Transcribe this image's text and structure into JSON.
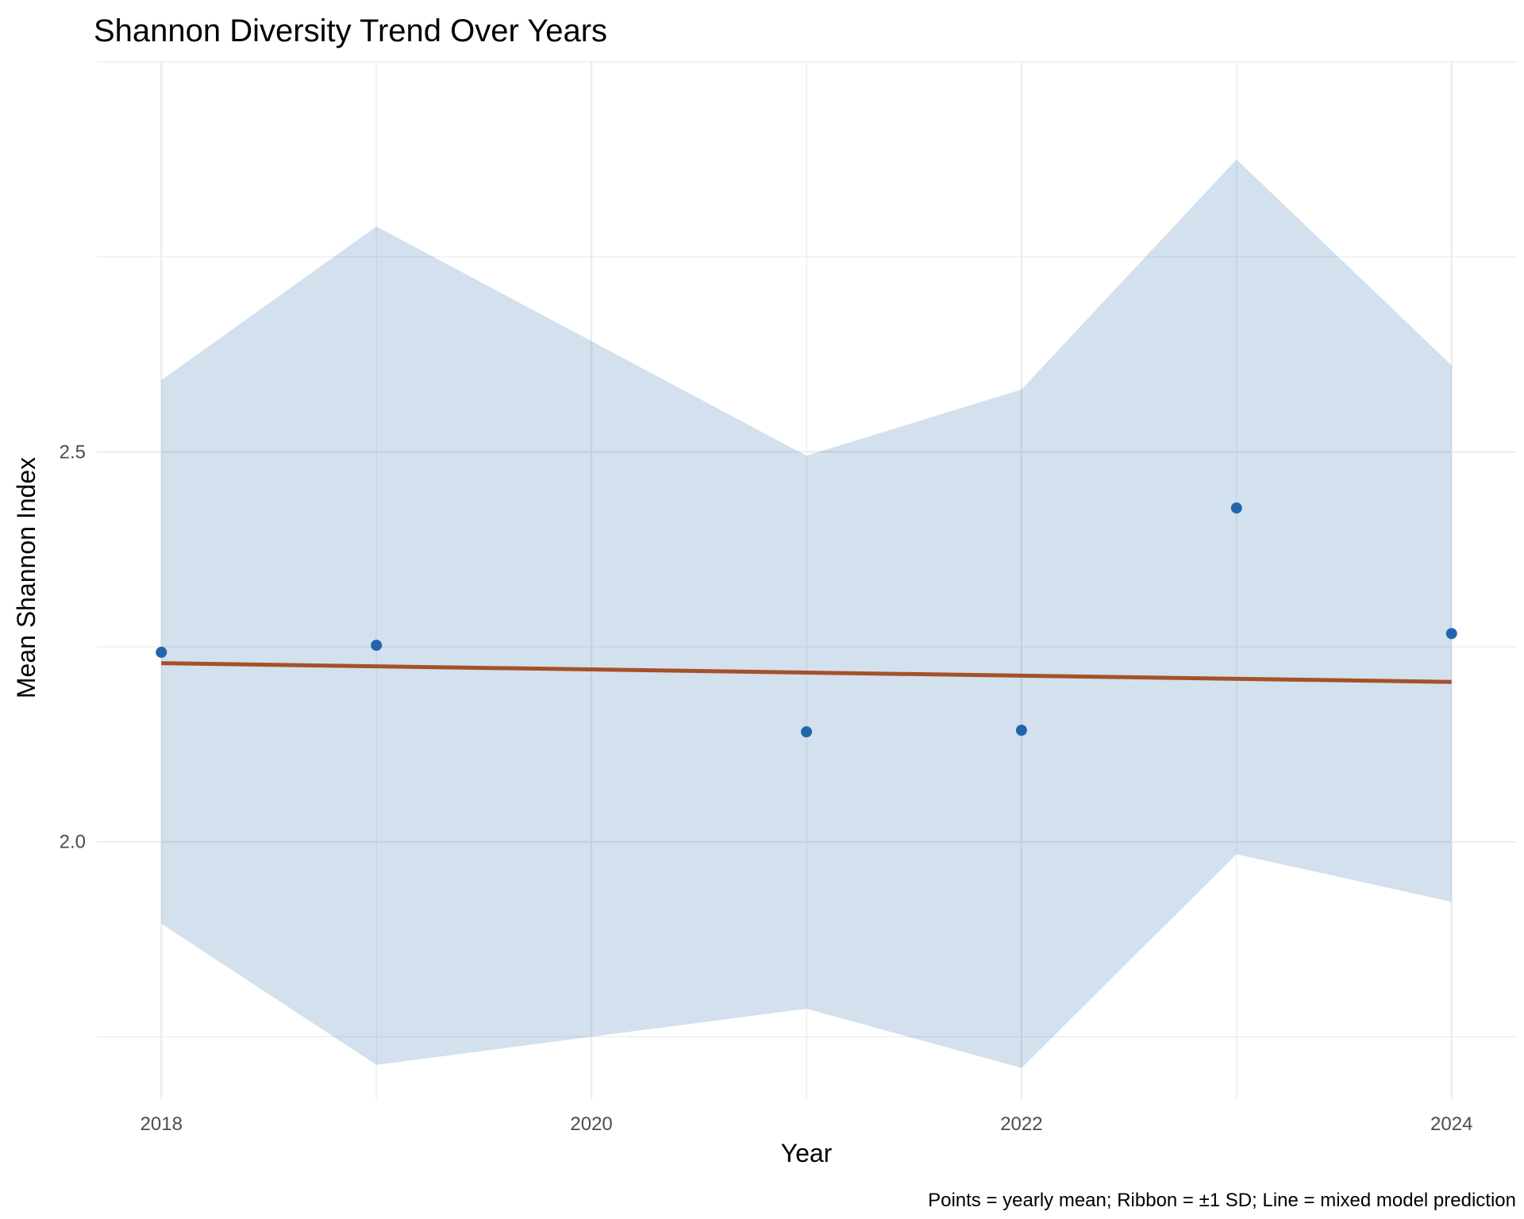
{
  "chart_data": {
    "type": "line",
    "title": "Shannon Diversity Trend Over Years",
    "xlabel": "Year",
    "ylabel": "Mean Shannon Index",
    "caption": "Points = yearly mean; Ribbon = ±1 SD; Line = mixed model prediction",
    "x_ticks": [
      "2018",
      "2020",
      "2022",
      "2024"
    ],
    "y_ticks": [
      "2.0",
      "2.5"
    ],
    "xlim": [
      2017.7,
      2024.3
    ],
    "ylim": [
      1.67,
      3.0
    ],
    "grid": true,
    "x": [
      2018,
      2019,
      2021,
      2022,
      2023,
      2024
    ],
    "series": [
      {
        "name": "Points = yearly mean",
        "type": "scatter",
        "values": [
          2.243,
          2.252,
          2.141,
          2.143,
          2.428,
          2.267
        ]
      },
      {
        "name": "Ribbon = ±1 SD",
        "type": "ribbon",
        "upper": [
          2.592,
          2.789,
          2.495,
          2.58,
          2.875,
          2.611
        ],
        "lower": [
          1.895,
          1.714,
          1.786,
          1.71,
          1.984,
          1.923
        ]
      },
      {
        "name": "Line = mixed model prediction",
        "type": "line",
        "values": [
          2.229,
          2.223,
          2.216,
          2.212,
          2.208,
          2.205
        ]
      }
    ],
    "x_line": [
      2018,
      2024
    ],
    "colors": {
      "points": "#2166ac",
      "ribbon": "#2166ac",
      "line": "#a6502a",
      "grid": "#ebebeb"
    }
  }
}
